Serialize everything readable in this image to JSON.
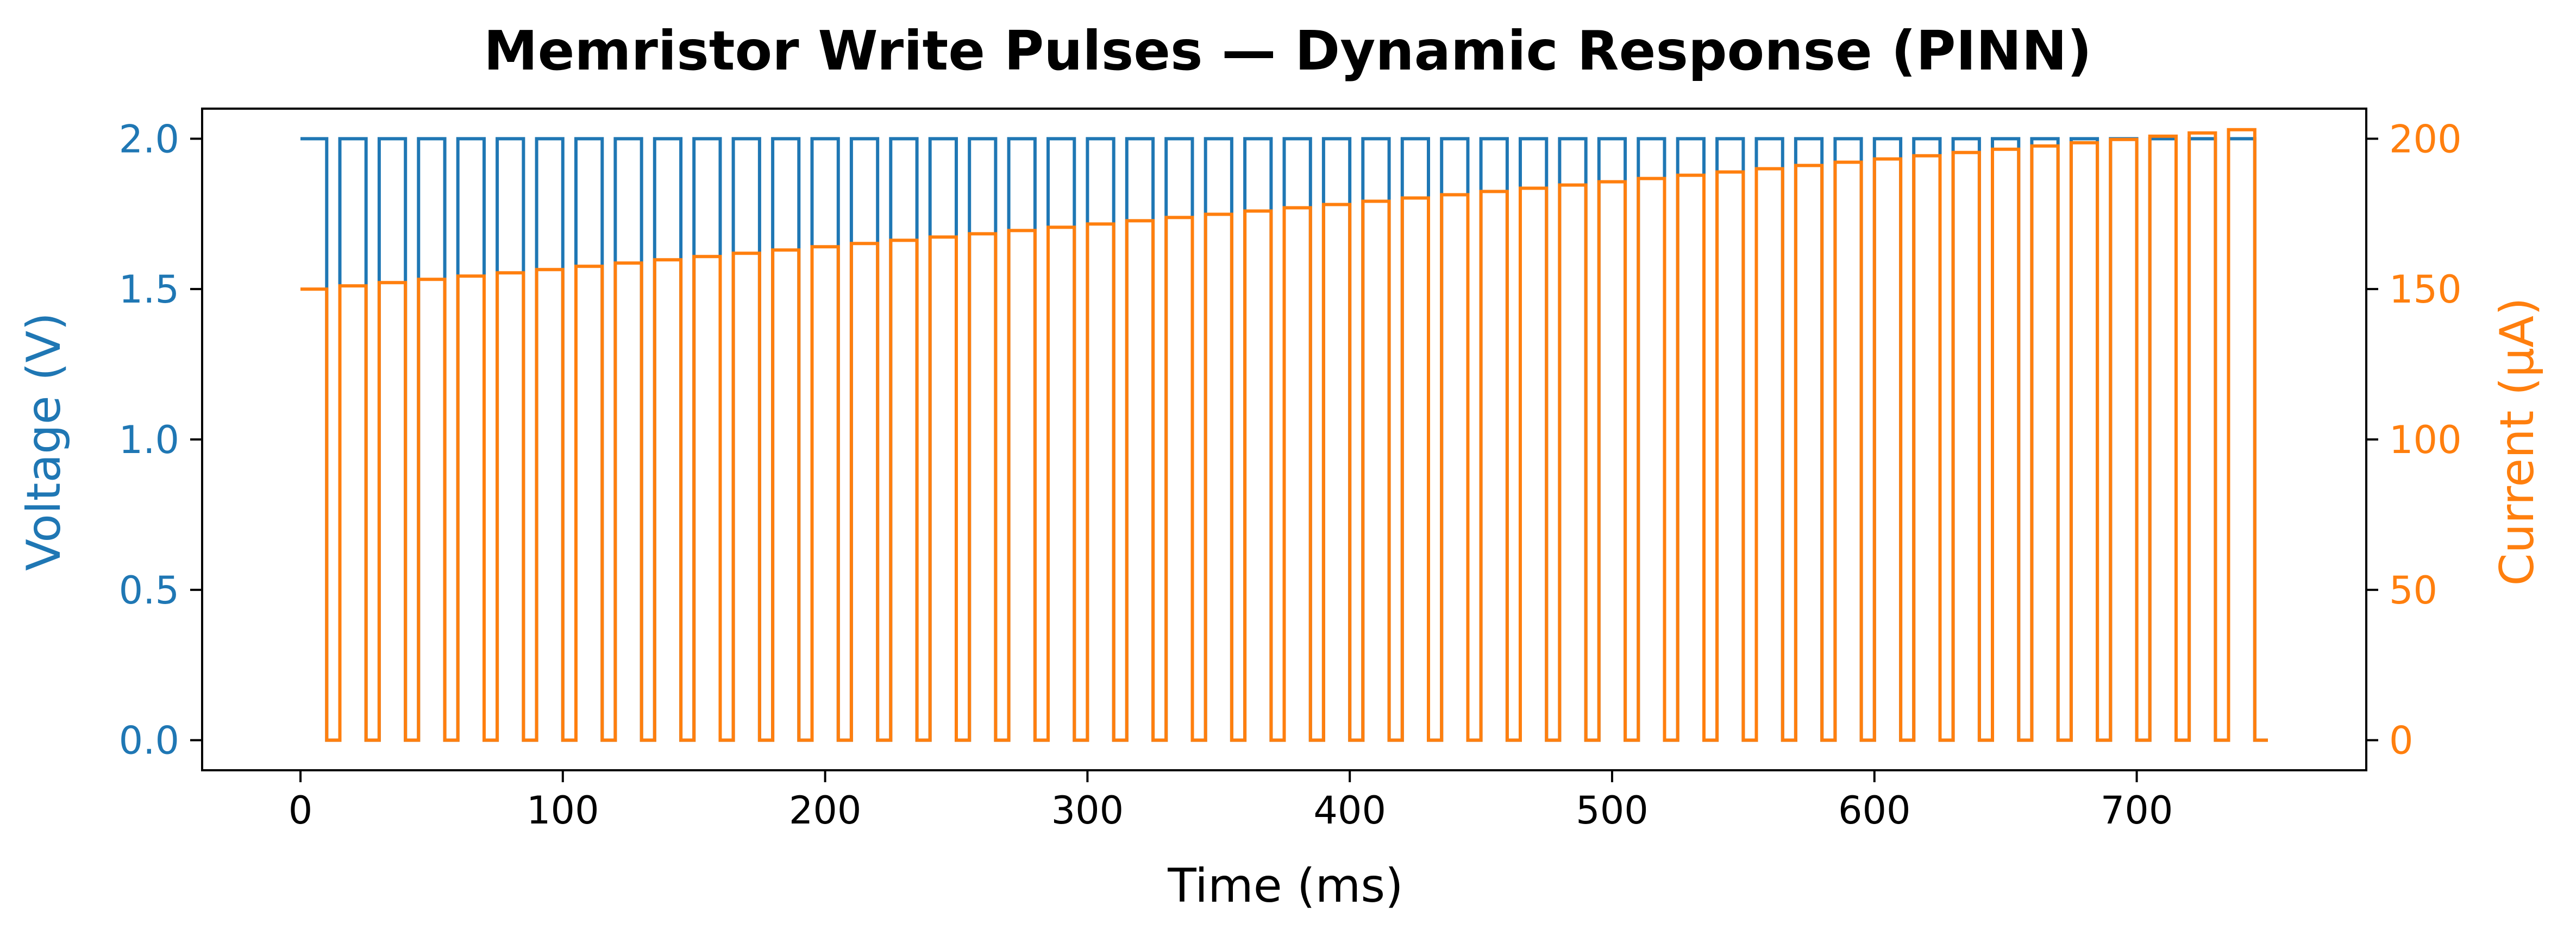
{
  "chart_data": {
    "type": "line",
    "title": "Memristor Write Pulses — Dynamic Response (PINN)",
    "xlabel": "Time (ms)",
    "ylabel_left": "Voltage (V)",
    "ylabel_right": "Current (μA)",
    "xlim": [
      -37.5,
      787.5
    ],
    "ylim_left": [
      -0.1,
      2.1
    ],
    "ylim_right": [
      -10,
      210
    ],
    "xticks": [
      0,
      100,
      200,
      300,
      400,
      500,
      600,
      700
    ],
    "yticks_left": [
      0.0,
      0.5,
      1.0,
      1.5,
      2.0
    ],
    "yticks_right": [
      0,
      50,
      100,
      150,
      200
    ],
    "grid": false,
    "pulse_train": {
      "pulse_count": 50,
      "period_ms": 15,
      "on_duration_ms": 10,
      "on_voltage_V": 2.0,
      "off_voltage_V": 0.0,
      "current_start_uA": 150,
      "current_end_uA": 203,
      "end_time_ms": 750
    },
    "series": [
      {
        "axis": "left",
        "color": "#1f77b4"
      },
      {
        "axis": "right",
        "color": "#ff7f0e"
      }
    ]
  }
}
